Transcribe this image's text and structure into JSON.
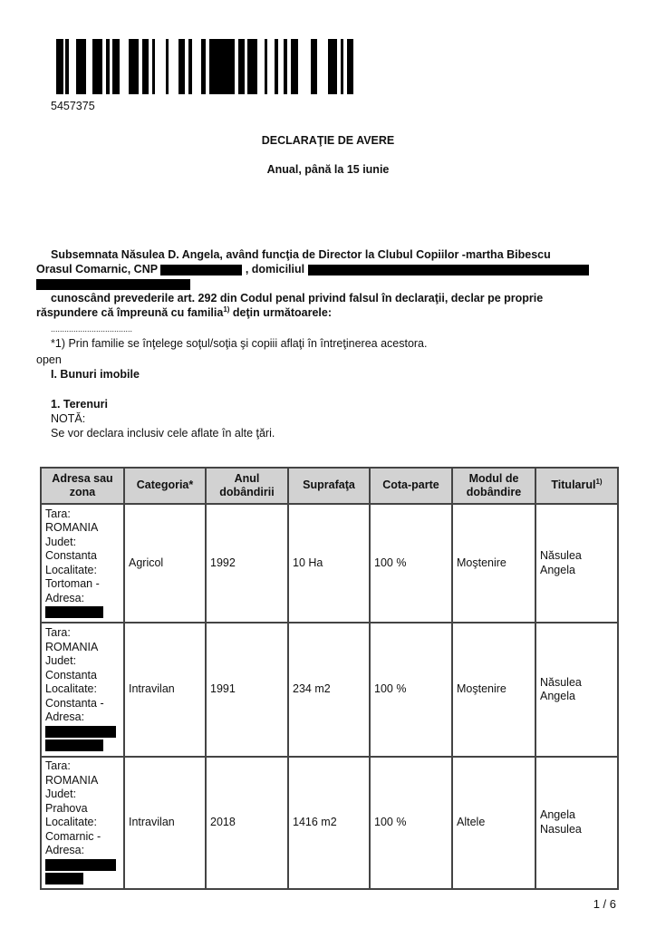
{
  "barcode_number": "5457375",
  "title": "DECLARAŢIE DE AVERE",
  "subtitle": "Anual, până la 15 iunie",
  "intro": {
    "line1": "Subsemnata Năsulea D. Angela, având funcţia de Director la Clubul Copiilor -martha Bibescu",
    "line2a": "Orasul Comarnic, CNP",
    "line2b": ", domiciliul",
    "line3": "cunoscând prevederile art. 292 din Codul penal privind falsul în declaraţii, declar pe proprie",
    "line4a": "răspundere că împreună cu familia",
    "sup": "1)",
    "line4b": " deţin următoarele:"
  },
  "dots": "....................................",
  "footnote": "*1) Prin familie se înţelege soţul/soţia şi copiii aflaţi în întreţinerea acestora.",
  "open_label": "open",
  "section": "I. Bunuri imobile",
  "subsection": "1. Terenuri",
  "note_label": "NOTĂ:",
  "note_text": "Se vor declara inclusiv cele aflate în alte ţări.",
  "table": {
    "headers": [
      "Adresa sau zona",
      "Categoria*",
      "Anul dobândirii",
      "Suprafaţa",
      "Cota-parte",
      "Modul de dobândire",
      "Titularul"
    ],
    "titular_sup": "1)",
    "rows": [
      {
        "address": [
          "Tara:",
          "ROMANIA",
          "Judet:",
          "Constanta",
          "Localitate:",
          "Tortoman -",
          "Adresa:"
        ],
        "categoria": "Agricol",
        "anul": "1992",
        "suprafata": "10 Ha",
        "cota": "100 %",
        "modul": "Moştenire",
        "titular": "Năsulea Angela"
      },
      {
        "address": [
          "Tara:",
          "ROMANIA",
          "Judet:",
          "Constanta",
          "Localitate:",
          "Constanta -",
          "Adresa:"
        ],
        "categoria": "Intravilan",
        "anul": "1991",
        "suprafata": "234 m2",
        "cota": "100 %",
        "modul": "Moştenire",
        "titular": "Năsulea Angela"
      },
      {
        "address": [
          "Tara:",
          "ROMANIA",
          "Judet:",
          "Prahova",
          "Localitate:",
          "Comarnic -",
          "Adresa:"
        ],
        "categoria": "Intravilan",
        "anul": "2018",
        "suprafata": "1416 m2",
        "cota": "100 %",
        "modul": "Altele",
        "titular": "Angela Nasulea"
      }
    ]
  },
  "page_number": "1 / 6"
}
